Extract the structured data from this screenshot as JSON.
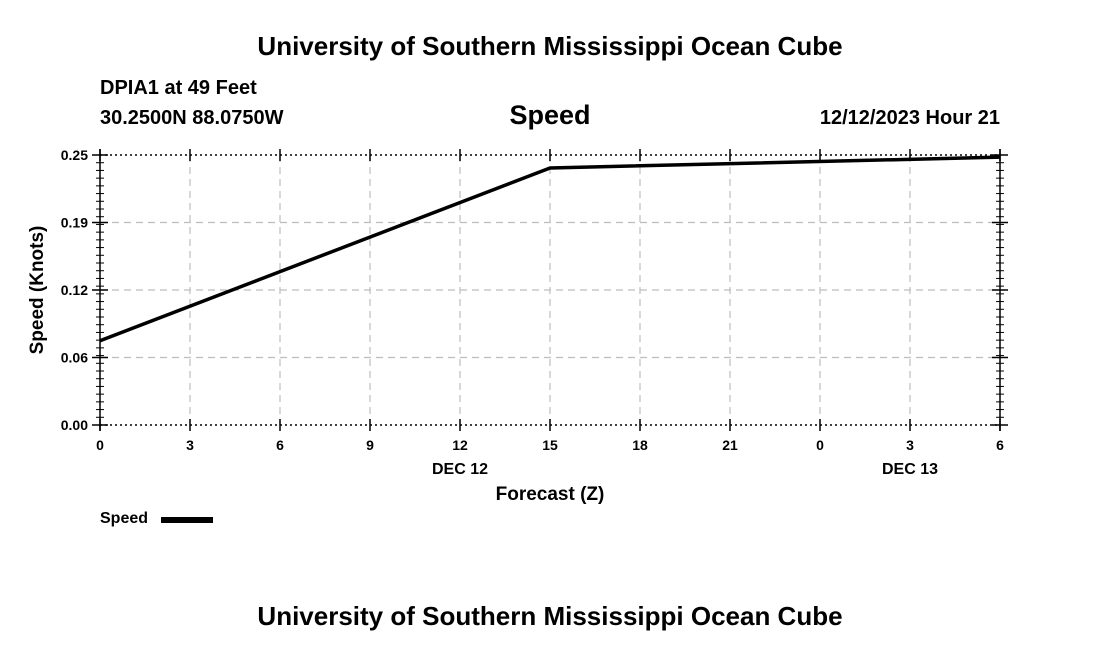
{
  "header": {
    "title": "University of Southern Mississippi Ocean Cube",
    "station": "DPIA1 at 49 Feet",
    "coordinates": "30.2500N  88.0750W",
    "chart_title": "Speed",
    "datetime": "12/12/2023 Hour 21"
  },
  "footer": {
    "title": "University of Southern Mississippi Ocean Cube"
  },
  "legend": {
    "label": "Speed"
  },
  "chart_data": {
    "type": "line",
    "title": "Speed",
    "xlabel": "Forecast (Z)",
    "ylabel": "Speed (Knots)",
    "x_tick_labels": [
      "0",
      "3",
      "6",
      "9",
      "12",
      "15",
      "18",
      "21",
      "0",
      "3",
      "6"
    ],
    "x_day_labels": [
      {
        "label": "DEC 12",
        "at_tick_index": 4
      },
      {
        "label": "DEC 13",
        "at_tick_index": 9
      }
    ],
    "x_range_hours": [
      0,
      30
    ],
    "ylim": [
      0,
      0.25
    ],
    "y_ticks": [
      "0.00",
      "0.06",
      "0.12",
      "0.19",
      "0.25"
    ],
    "y_tick_values": [
      0,
      0.0625,
      0.125,
      0.1875,
      0.25
    ],
    "grid": true,
    "legend_position": "bottom-left",
    "series": [
      {
        "name": "Speed",
        "color": "#000000",
        "x_hours": [
          0,
          15,
          30
        ],
        "values": [
          0.078,
          0.238,
          0.248
        ]
      }
    ]
  }
}
